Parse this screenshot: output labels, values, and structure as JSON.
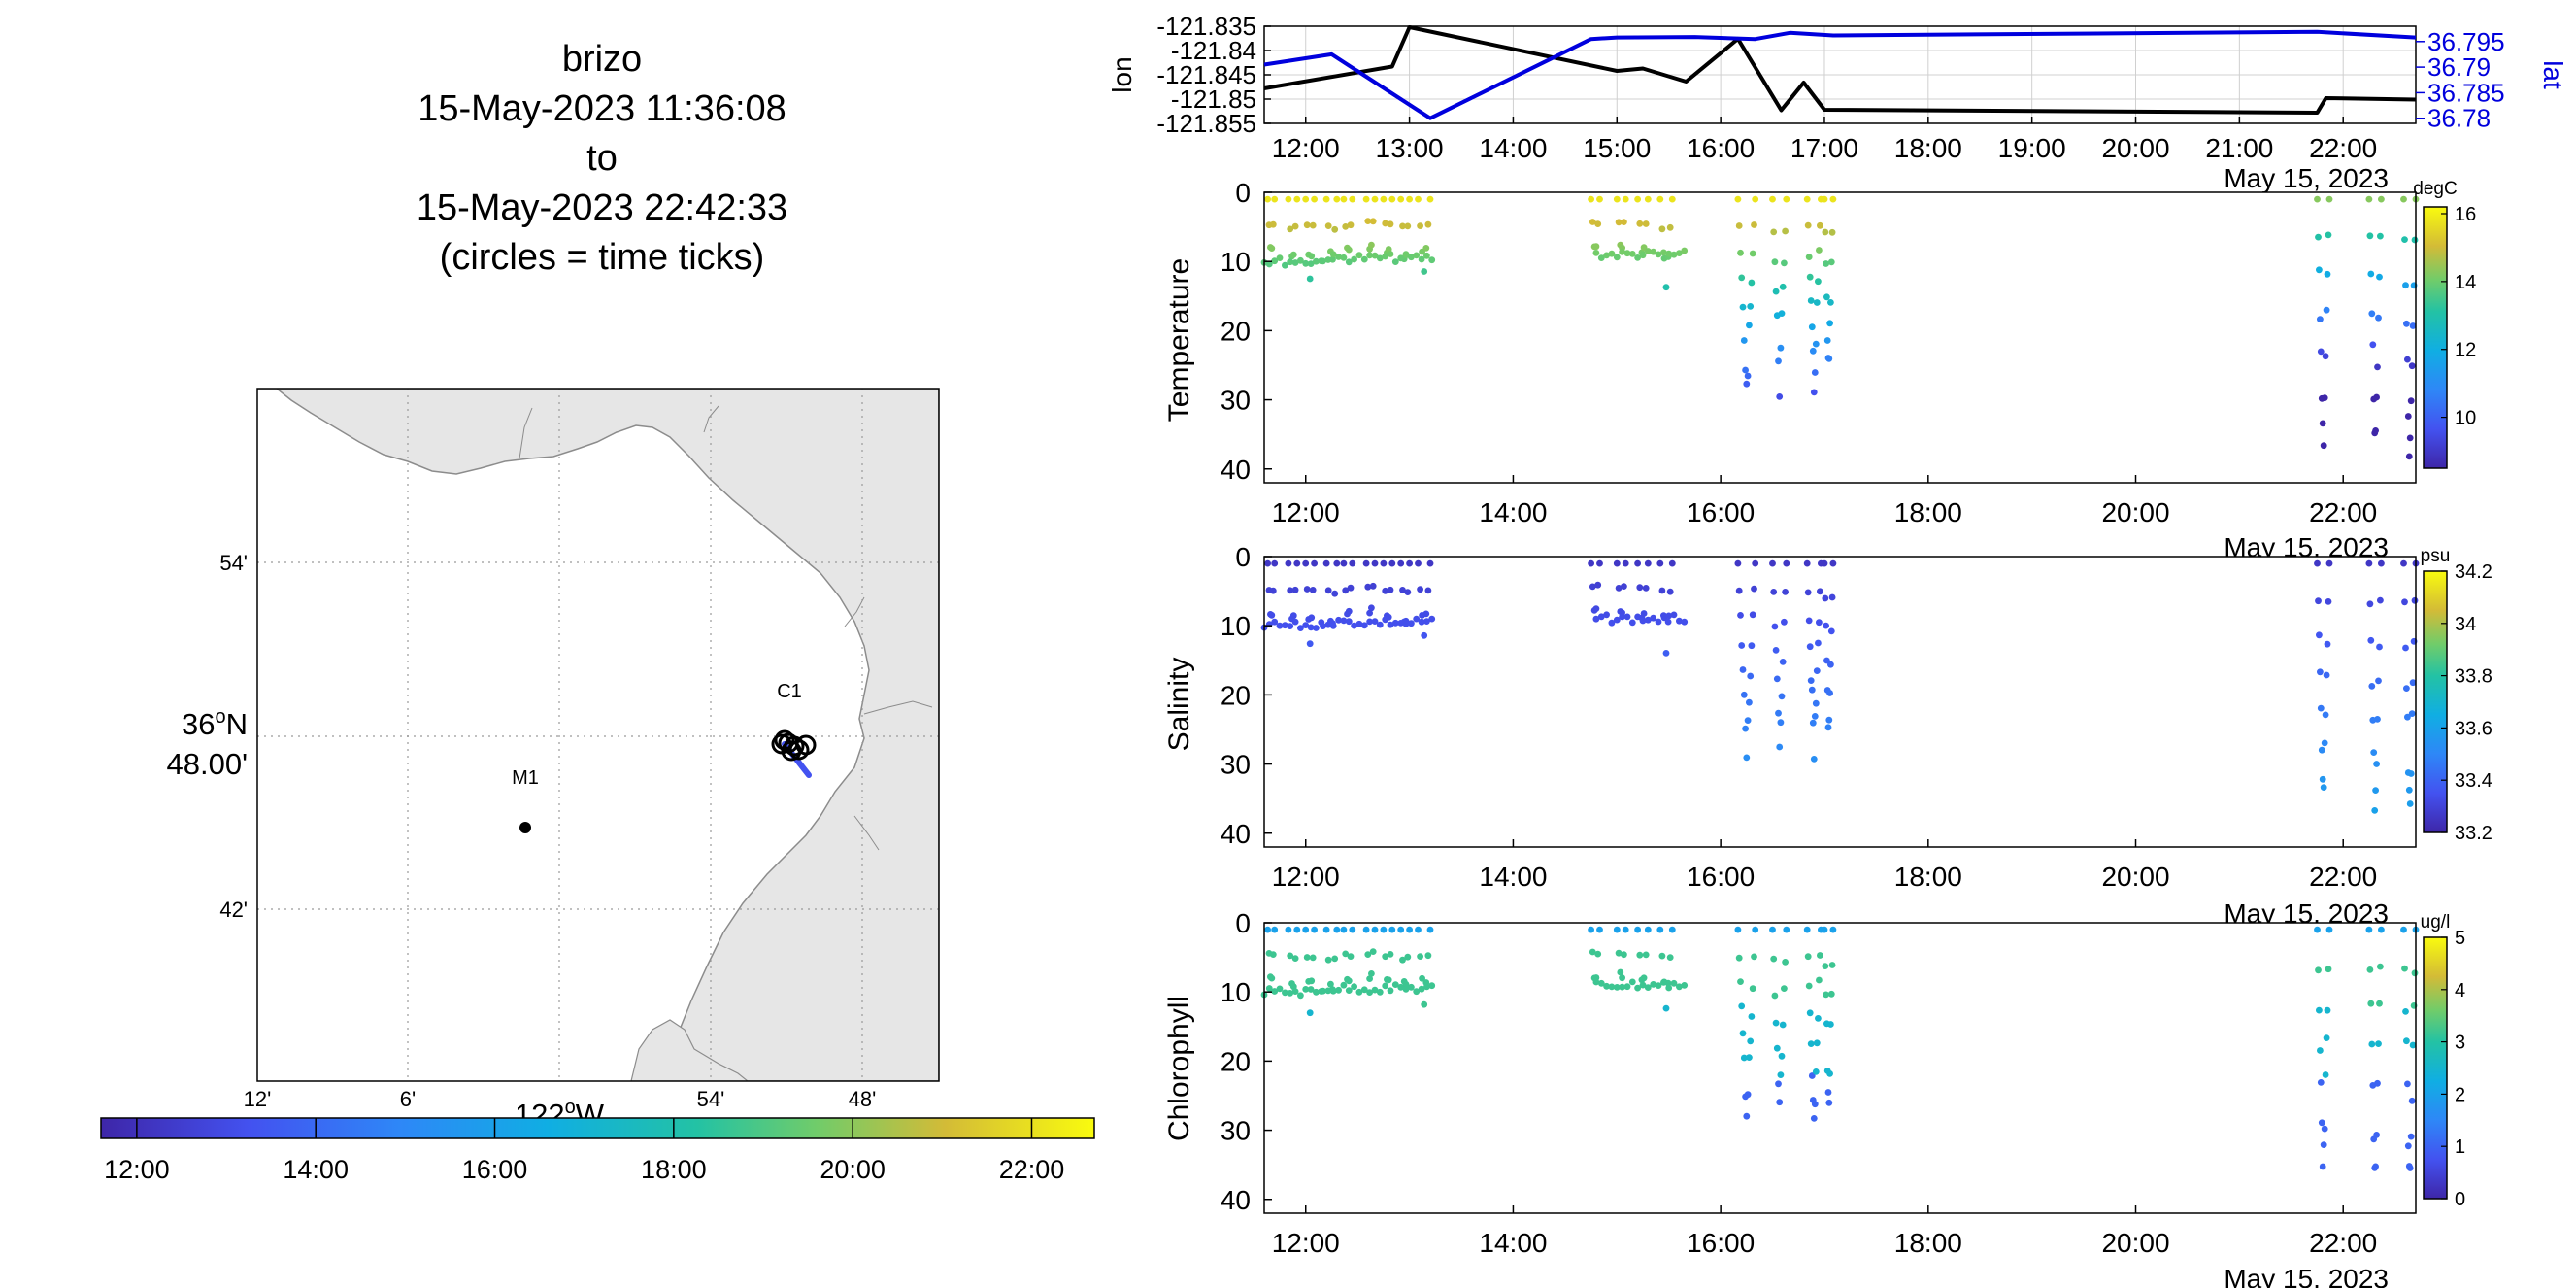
{
  "title": {
    "line1": "brizo",
    "line2": "15-May-2023 11:36:08",
    "line3": "to",
    "line4": "15-May-2023 22:42:33",
    "line5": "(circles = time ticks)"
  },
  "map": {
    "lat_ticks": [
      "54'",
      "42'"
    ],
    "lat_center_deg": "36",
    "lat_center_suffix": "N",
    "lat_center_min": "48.00'",
    "lon_ticks": [
      "12'",
      "6'",
      "54'",
      "48'"
    ],
    "lon_center_deg": "122",
    "lon_center_suffix": "W",
    "station_labels": [
      "C1",
      "M1"
    ],
    "time_colorbar_ticks": [
      "12:00",
      "14:00",
      "16:00",
      "18:00",
      "20:00",
      "22:00"
    ],
    "colors": {
      "land": "#e6e6e6",
      "coast": "#8c8c8c",
      "grid": "#9a9a9a"
    }
  },
  "chart_data": [
    {
      "type": "line",
      "title": "",
      "xlabel": "",
      "xticks": [
        "12:00",
        "13:00",
        "14:00",
        "15:00",
        "16:00",
        "17:00",
        "18:00",
        "19:00",
        "20:00",
        "21:00",
        "22:00"
      ],
      "date_label": "May 15, 2023",
      "xlim": [
        "11:36",
        "22:42"
      ],
      "grid": true,
      "left_axis": {
        "label": "lon",
        "ticks": [
          "-121.835",
          "-121.84",
          "-121.845",
          "-121.85",
          "-121.855"
        ],
        "ylim": [
          -121.855,
          -121.835
        ]
      },
      "right_axis": {
        "label": "lat",
        "ticks": [
          "36.795",
          "36.79",
          "36.785",
          "36.78"
        ],
        "ylim": [
          36.779,
          36.798
        ]
      },
      "series": [
        {
          "name": "lon",
          "color": "#000000",
          "x": [
            "11:36",
            "12:50",
            "13:00",
            "15:00",
            "15:15",
            "15:40",
            "16:10",
            "16:35",
            "16:48",
            "17:00",
            "21:45",
            "21:50",
            "22:42"
          ],
          "y": [
            -121.8478,
            -121.8433,
            -121.8352,
            -121.8442,
            -121.8437,
            -121.8464,
            -121.8376,
            -121.8523,
            -121.8466,
            -121.8522,
            -121.8528,
            -121.8498,
            -121.8501
          ]
        },
        {
          "name": "lat",
          "color": "#0000dd",
          "x": [
            "11:36",
            "12:15",
            "13:12",
            "14:45",
            "15:00",
            "15:45",
            "16:20",
            "16:40",
            "17:05",
            "21:45",
            "22:42"
          ],
          "y": [
            36.7905,
            36.7925,
            36.78,
            36.7955,
            36.7958,
            36.7959,
            36.7955,
            36.7967,
            36.7962,
            36.7969,
            36.7958
          ]
        }
      ]
    },
    {
      "type": "scatter",
      "ylabel": "Temperature",
      "xticks": [
        "12:00",
        "14:00",
        "16:00",
        "18:00",
        "20:00",
        "22:00"
      ],
      "date_label": "May 15, 2023",
      "yticks": [
        "0",
        "10",
        "20",
        "30",
        "40"
      ],
      "ylim": [
        0,
        42
      ],
      "y_inverted": true,
      "colorbar": {
        "unit": "degC",
        "ticks": [
          "16",
          "14",
          "12",
          "10"
        ],
        "clim": [
          8.5,
          16.2
        ]
      },
      "note": "depth profiles colored by temperature"
    },
    {
      "type": "scatter",
      "ylabel": "Salinity",
      "xticks": [
        "12:00",
        "14:00",
        "16:00",
        "18:00",
        "20:00",
        "22:00"
      ],
      "date_label": "May 15, 2023",
      "yticks": [
        "0",
        "10",
        "20",
        "30",
        "40"
      ],
      "ylim": [
        0,
        42
      ],
      "y_inverted": true,
      "colorbar": {
        "unit": "psu",
        "ticks": [
          "34.2",
          "34",
          "33.8",
          "33.6",
          "33.4",
          "33.2"
        ],
        "clim": [
          33.2,
          34.2
        ]
      },
      "note": "depth profiles colored by salinity"
    },
    {
      "type": "scatter",
      "ylabel": "Chlorophyll",
      "xticks": [
        "12:00",
        "14:00",
        "16:00",
        "18:00",
        "20:00",
        "22:00"
      ],
      "date_label": "May 15, 2023",
      "yticks": [
        "0",
        "10",
        "20",
        "30",
        "40"
      ],
      "ylim": [
        0,
        42
      ],
      "y_inverted": true,
      "colorbar": {
        "unit": "ug/l",
        "ticks": [
          "5",
          "4",
          "3",
          "2",
          "1",
          "0"
        ],
        "clim": [
          0,
          5
        ]
      },
      "note": "depth profiles colored by chlorophyll"
    }
  ]
}
